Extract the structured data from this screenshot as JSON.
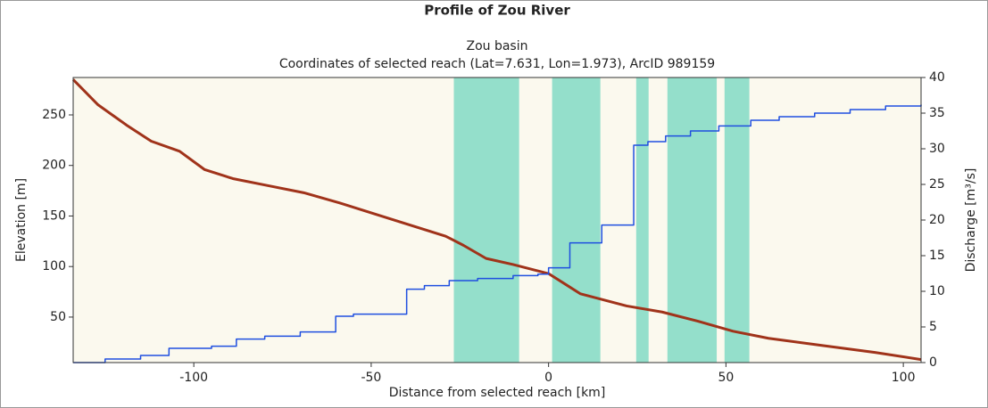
{
  "chart_data": {
    "type": "line",
    "title": "Profile of Zou River",
    "subtitle": "Zou basin",
    "subtitle2": "Coordinates of selected reach (Lat=7.631, Lon=1.973), ArcID 989159",
    "xlabel": "Distance from selected reach [km]",
    "ylabel": "Elevation [m]",
    "y2label": "Discharge [m³/s]",
    "xlim": [
      -134,
      105
    ],
    "ylim": [
      5,
      287
    ],
    "y2lim": [
      0,
      40
    ],
    "xticks": [
      -100,
      -50,
      0,
      50,
      100
    ],
    "yticks": [
      50,
      100,
      150,
      200,
      250
    ],
    "y2ticks": [
      0,
      5,
      10,
      15,
      20,
      25,
      30,
      35,
      40
    ],
    "background": "#fbf9ee",
    "span_color": "#94dfcb",
    "spans": [
      [
        -26.7,
        -8.3
      ],
      [
        1.0,
        14.6
      ],
      [
        24.7,
        28.2
      ],
      [
        33.5,
        47.4
      ],
      [
        49.6,
        56.6
      ]
    ],
    "series": [
      {
        "color": "#a0331a",
        "axis": "y",
        "drawstyle": "default",
        "x": [
          -134,
          -127,
          -119,
          -112,
          -104,
          -97,
          -89,
          -79,
          -69,
          -59,
          -49,
          -39,
          -29,
          -24,
          -17.6,
          -10,
          0,
          9,
          22,
          32,
          42,
          52,
          62,
          77,
          92,
          105
        ],
        "values": [
          285,
          260,
          240,
          224,
          214,
          196,
          187,
          180,
          173,
          163,
          152,
          141,
          130,
          121,
          108,
          102,
          93,
          73,
          61,
          55,
          46,
          36,
          29,
          22,
          15,
          8
        ]
      },
      {
        "color": "#1f4fe0",
        "axis": "y2",
        "drawstyle": "steps-post",
        "x": [
          -134,
          -125,
          -115,
          -107,
          -95,
          -88,
          -80,
          -70,
          -60,
          -55,
          -40,
          -35,
          -28,
          -20,
          -10,
          -3,
          0,
          6,
          15,
          24,
          28,
          33,
          40,
          48,
          57,
          65,
          75,
          85,
          95,
          105
        ],
        "values": [
          0,
          0.5,
          1.0,
          2.0,
          2.3,
          3.3,
          3.7,
          4.3,
          6.5,
          6.8,
          10.3,
          10.8,
          11.5,
          11.8,
          12.2,
          12.4,
          13.3,
          16.8,
          19.3,
          30.5,
          31,
          31.8,
          32.5,
          33.2,
          34,
          34.5,
          35,
          35.5,
          36,
          36.2
        ]
      }
    ]
  }
}
